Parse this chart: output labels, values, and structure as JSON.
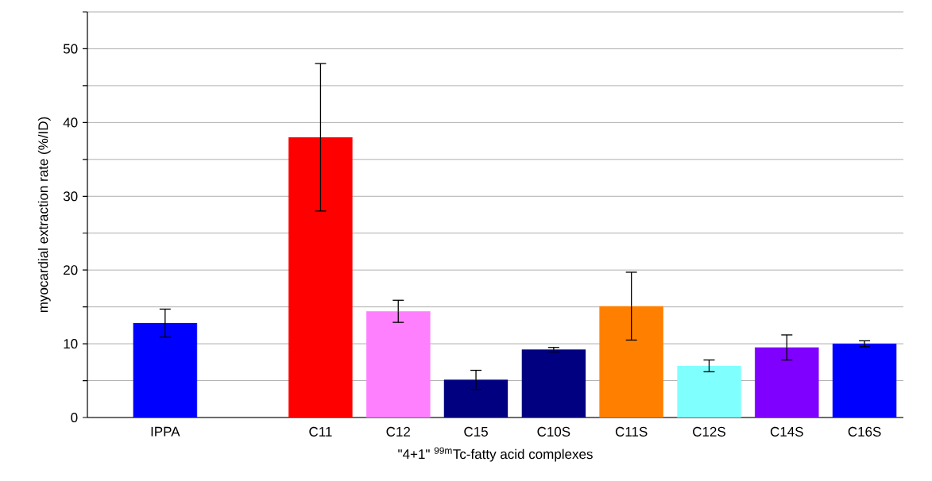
{
  "chart_data": {
    "type": "bar",
    "xlabel": "\"4+1\" $^{99m}$Tc-fatty acid complexes",
    "ylabel": "myocardial extraction rate (%/ID)",
    "categories": [
      "IPPA",
      null,
      "C11",
      "C12",
      "C15",
      "C10S",
      "C11S",
      "C12S",
      "C14S",
      "C16S"
    ],
    "values": [
      12.8,
      null,
      38.0,
      14.4,
      5.1,
      9.2,
      15.1,
      7.0,
      9.5,
      10.0
    ],
    "errors": [
      1.9,
      null,
      10.0,
      1.5,
      1.3,
      0.3,
      4.6,
      0.8,
      1.7,
      0.4
    ],
    "colors": [
      "#0000ff",
      null,
      "#ff0000",
      "#ff80ff",
      "#000080",
      "#000080",
      "#ff8000",
      "#80ffff",
      "#8000ff",
      "#0000ff"
    ],
    "ylim": [
      0,
      55
    ],
    "yticks": [
      0,
      {
        "value": 5,
        "label": null
      },
      10,
      {
        "value": 15,
        "label": null
      },
      20,
      {
        "value": 25,
        "label": null
      },
      30,
      {
        "value": 35,
        "label": null
      },
      40,
      {
        "value": 45,
        "label": null
      },
      50,
      {
        "value": 55,
        "label": null
      }
    ],
    "grid": "y"
  }
}
